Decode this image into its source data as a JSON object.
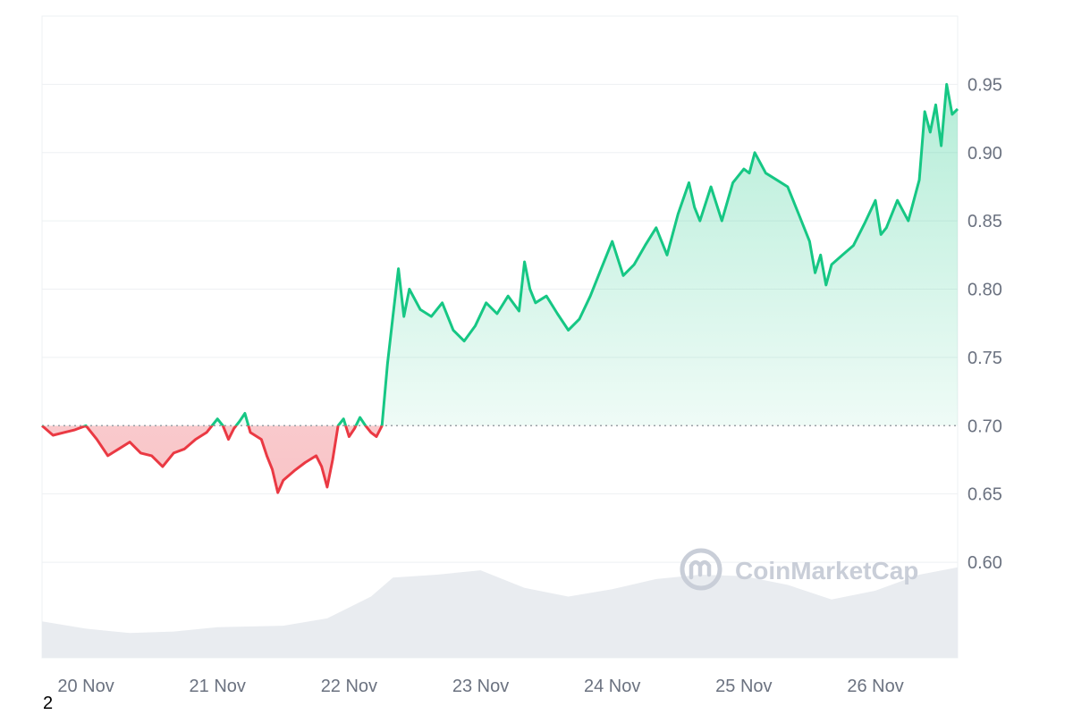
{
  "footnote": "2",
  "watermark": {
    "text": "CoinMarketCap",
    "color": "#c9ced8"
  },
  "colors": {
    "up_line": "#16c784",
    "down_line": "#ea3943",
    "up_fill": "#16c784",
    "down_fill": "#ea3943",
    "grid": "#eef0f3",
    "volume": "#e9ecf0",
    "baseline": "#9aa0a6"
  },
  "chart_data": {
    "type": "area",
    "title": "",
    "xlabel": "",
    "ylabel": "",
    "x_ticks": [
      "20 Nov",
      "21 Nov",
      "22 Nov",
      "23 Nov",
      "24 Nov",
      "25 Nov",
      "26 Nov"
    ],
    "y_ticks": [
      "0.60",
      "0.65",
      "0.70",
      "0.75",
      "0.80",
      "0.85",
      "0.90",
      "0.95"
    ],
    "ylim": [
      0.53,
      1.0
    ],
    "xlim": [
      "2023-11-19T16:00",
      "2023-11-26T15:00"
    ],
    "baseline": 0.7,
    "y_axis_position": "right",
    "grid": true,
    "legend": "none",
    "price_series": [
      [
        "2023-11-19T16:00",
        0.7
      ],
      [
        "2023-11-19T18:00",
        0.693
      ],
      [
        "2023-11-19T20:00",
        0.695
      ],
      [
        "2023-11-19T22:00",
        0.697
      ],
      [
        "2023-11-20T00:00",
        0.7
      ],
      [
        "2023-11-20T02:00",
        0.69
      ],
      [
        "2023-11-20T04:00",
        0.678
      ],
      [
        "2023-11-20T06:00",
        0.683
      ],
      [
        "2023-11-20T08:00",
        0.688
      ],
      [
        "2023-11-20T10:00",
        0.68
      ],
      [
        "2023-11-20T12:00",
        0.678
      ],
      [
        "2023-11-20T14:00",
        0.67
      ],
      [
        "2023-11-20T16:00",
        0.68
      ],
      [
        "2023-11-20T18:00",
        0.683
      ],
      [
        "2023-11-20T20:00",
        0.69
      ],
      [
        "2023-11-20T22:00",
        0.695
      ],
      [
        "2023-11-21T00:00",
        0.705
      ],
      [
        "2023-11-21T01:00",
        0.7
      ],
      [
        "2023-11-21T02:00",
        0.69
      ],
      [
        "2023-11-21T03:00",
        0.698
      ],
      [
        "2023-11-21T04:00",
        0.703
      ],
      [
        "2023-11-21T05:00",
        0.709
      ],
      [
        "2023-11-21T06:00",
        0.695
      ],
      [
        "2023-11-21T08:00",
        0.69
      ],
      [
        "2023-11-21T09:00",
        0.678
      ],
      [
        "2023-11-21T10:00",
        0.668
      ],
      [
        "2023-11-21T11:00",
        0.651
      ],
      [
        "2023-11-21T12:00",
        0.66
      ],
      [
        "2023-11-21T14:00",
        0.667
      ],
      [
        "2023-11-21T16:00",
        0.673
      ],
      [
        "2023-11-21T18:00",
        0.678
      ],
      [
        "2023-11-21T19:00",
        0.67
      ],
      [
        "2023-11-21T20:00",
        0.655
      ],
      [
        "2023-11-21T21:00",
        0.675
      ],
      [
        "2023-11-21T22:00",
        0.7
      ],
      [
        "2023-11-21T23:00",
        0.705
      ],
      [
        "2023-11-22T00:00",
        0.692
      ],
      [
        "2023-11-22T01:00",
        0.698
      ],
      [
        "2023-11-22T02:00",
        0.706
      ],
      [
        "2023-11-22T03:00",
        0.7
      ],
      [
        "2023-11-22T04:00",
        0.695
      ],
      [
        "2023-11-22T05:00",
        0.692
      ],
      [
        "2023-11-22T06:00",
        0.7
      ],
      [
        "2023-11-22T07:00",
        0.745
      ],
      [
        "2023-11-22T08:00",
        0.78
      ],
      [
        "2023-11-22T09:00",
        0.815
      ],
      [
        "2023-11-22T10:00",
        0.78
      ],
      [
        "2023-11-22T11:00",
        0.8
      ],
      [
        "2023-11-22T13:00",
        0.785
      ],
      [
        "2023-11-22T15:00",
        0.78
      ],
      [
        "2023-11-22T17:00",
        0.79
      ],
      [
        "2023-11-22T19:00",
        0.77
      ],
      [
        "2023-11-22T21:00",
        0.762
      ],
      [
        "2023-11-22T23:00",
        0.773
      ],
      [
        "2023-11-23T01:00",
        0.79
      ],
      [
        "2023-11-23T03:00",
        0.782
      ],
      [
        "2023-11-23T05:00",
        0.795
      ],
      [
        "2023-11-23T07:00",
        0.784
      ],
      [
        "2023-11-23T08:00",
        0.82
      ],
      [
        "2023-11-23T09:00",
        0.8
      ],
      [
        "2023-11-23T10:00",
        0.79
      ],
      [
        "2023-11-23T12:00",
        0.795
      ],
      [
        "2023-11-23T14:00",
        0.782
      ],
      [
        "2023-11-23T16:00",
        0.77
      ],
      [
        "2023-11-23T18:00",
        0.778
      ],
      [
        "2023-11-23T20:00",
        0.795
      ],
      [
        "2023-11-23T22:00",
        0.815
      ],
      [
        "2023-11-24T00:00",
        0.835
      ],
      [
        "2023-11-24T02:00",
        0.81
      ],
      [
        "2023-11-24T04:00",
        0.818
      ],
      [
        "2023-11-24T06:00",
        0.832
      ],
      [
        "2023-11-24T08:00",
        0.845
      ],
      [
        "2023-11-24T10:00",
        0.825
      ],
      [
        "2023-11-24T12:00",
        0.855
      ],
      [
        "2023-11-24T14:00",
        0.878
      ],
      [
        "2023-11-24T15:00",
        0.86
      ],
      [
        "2023-11-24T16:00",
        0.85
      ],
      [
        "2023-11-24T18:00",
        0.875
      ],
      [
        "2023-11-24T20:00",
        0.85
      ],
      [
        "2023-11-24T22:00",
        0.878
      ],
      [
        "2023-11-25T00:00",
        0.888
      ],
      [
        "2023-11-25T01:00",
        0.885
      ],
      [
        "2023-11-25T02:00",
        0.9
      ],
      [
        "2023-11-25T04:00",
        0.885
      ],
      [
        "2023-11-25T06:00",
        0.88
      ],
      [
        "2023-11-25T08:00",
        0.875
      ],
      [
        "2023-11-25T10:00",
        0.855
      ],
      [
        "2023-11-25T12:00",
        0.835
      ],
      [
        "2023-11-25T13:00",
        0.812
      ],
      [
        "2023-11-25T14:00",
        0.825
      ],
      [
        "2023-11-25T15:00",
        0.803
      ],
      [
        "2023-11-25T16:00",
        0.818
      ],
      [
        "2023-11-25T18:00",
        0.825
      ],
      [
        "2023-11-25T20:00",
        0.832
      ],
      [
        "2023-11-25T22:00",
        0.848
      ],
      [
        "2023-11-26T00:00",
        0.865
      ],
      [
        "2023-11-26T01:00",
        0.84
      ],
      [
        "2023-11-26T02:00",
        0.845
      ],
      [
        "2023-11-26T04:00",
        0.865
      ],
      [
        "2023-11-26T06:00",
        0.85
      ],
      [
        "2023-11-26T08:00",
        0.88
      ],
      [
        "2023-11-26T09:00",
        0.93
      ],
      [
        "2023-11-26T10:00",
        0.915
      ],
      [
        "2023-11-26T11:00",
        0.935
      ],
      [
        "2023-11-26T12:00",
        0.905
      ],
      [
        "2023-11-26T13:00",
        0.95
      ],
      [
        "2023-11-26T14:00",
        0.928
      ],
      [
        "2023-11-26T15:00",
        0.932
      ]
    ],
    "volume_series": [
      [
        "2023-11-19T16:00",
        0.25
      ],
      [
        "2023-11-20T00:00",
        0.2
      ],
      [
        "2023-11-20T08:00",
        0.17
      ],
      [
        "2023-11-20T16:00",
        0.18
      ],
      [
        "2023-11-21T00:00",
        0.21
      ],
      [
        "2023-11-21T12:00",
        0.22
      ],
      [
        "2023-11-21T20:00",
        0.27
      ],
      [
        "2023-11-22T04:00",
        0.42
      ],
      [
        "2023-11-22T08:00",
        0.55
      ],
      [
        "2023-11-22T16:00",
        0.57
      ],
      [
        "2023-11-23T00:00",
        0.6
      ],
      [
        "2023-11-23T08:00",
        0.48
      ],
      [
        "2023-11-23T16:00",
        0.42
      ],
      [
        "2023-11-24T00:00",
        0.47
      ],
      [
        "2023-11-24T08:00",
        0.54
      ],
      [
        "2023-11-24T16:00",
        0.57
      ],
      [
        "2023-11-25T00:00",
        0.56
      ],
      [
        "2023-11-25T08:00",
        0.5
      ],
      [
        "2023-11-25T16:00",
        0.4
      ],
      [
        "2023-11-26T00:00",
        0.46
      ],
      [
        "2023-11-26T08:00",
        0.57
      ],
      [
        "2023-11-26T15:00",
        0.62
      ]
    ]
  }
}
